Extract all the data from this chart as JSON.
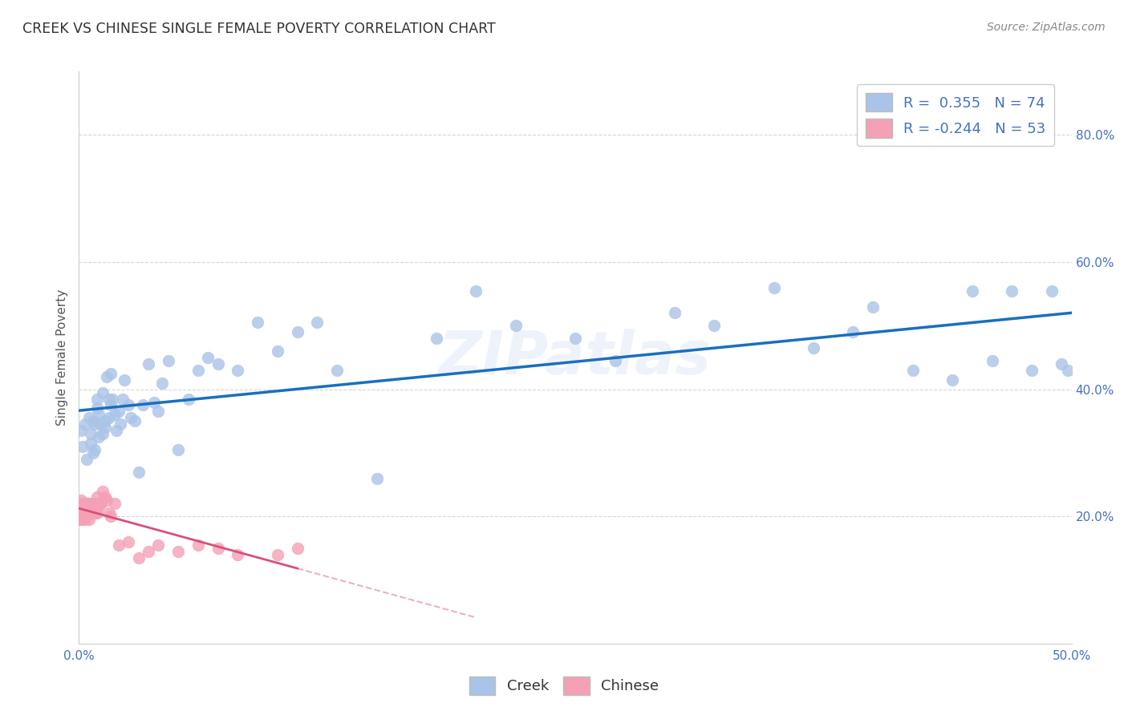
{
  "title": "CREEK VS CHINESE SINGLE FEMALE POVERTY CORRELATION CHART",
  "source": "Source: ZipAtlas.com",
  "ylabel": "Single Female Poverty",
  "xlim": [
    0.0,
    0.5
  ],
  "ylim": [
    0.0,
    0.9
  ],
  "creek_color": "#aac4e8",
  "creek_line_color": "#1a6fbf",
  "chinese_color": "#f4a0b5",
  "chinese_line_color": "#d94f7a",
  "watermark": "ZIPatlas",
  "legend_creek_R": "R =  0.355",
  "legend_creek_N": "N = 74",
  "legend_chinese_R": "R = -0.244",
  "legend_chinese_N": "N = 53",
  "creek_x": [
    0.001,
    0.002,
    0.003,
    0.004,
    0.005,
    0.006,
    0.006,
    0.007,
    0.007,
    0.008,
    0.008,
    0.009,
    0.009,
    0.01,
    0.01,
    0.011,
    0.012,
    0.012,
    0.013,
    0.013,
    0.014,
    0.015,
    0.015,
    0.016,
    0.016,
    0.017,
    0.018,
    0.019,
    0.02,
    0.021,
    0.022,
    0.023,
    0.025,
    0.026,
    0.028,
    0.03,
    0.032,
    0.035,
    0.038,
    0.04,
    0.042,
    0.045,
    0.05,
    0.055,
    0.06,
    0.065,
    0.07,
    0.08,
    0.09,
    0.1,
    0.11,
    0.12,
    0.13,
    0.15,
    0.18,
    0.2,
    0.22,
    0.25,
    0.27,
    0.3,
    0.32,
    0.35,
    0.37,
    0.39,
    0.4,
    0.42,
    0.44,
    0.45,
    0.46,
    0.47,
    0.48,
    0.49,
    0.495,
    0.498
  ],
  "creek_y": [
    0.335,
    0.31,
    0.345,
    0.29,
    0.355,
    0.33,
    0.315,
    0.35,
    0.3,
    0.345,
    0.305,
    0.37,
    0.385,
    0.325,
    0.36,
    0.345,
    0.395,
    0.33,
    0.35,
    0.34,
    0.42,
    0.385,
    0.355,
    0.375,
    0.425,
    0.385,
    0.36,
    0.335,
    0.365,
    0.345,
    0.385,
    0.415,
    0.375,
    0.355,
    0.35,
    0.27,
    0.375,
    0.44,
    0.38,
    0.365,
    0.41,
    0.445,
    0.305,
    0.385,
    0.43,
    0.45,
    0.44,
    0.43,
    0.505,
    0.46,
    0.49,
    0.505,
    0.43,
    0.26,
    0.48,
    0.555,
    0.5,
    0.48,
    0.445,
    0.52,
    0.5,
    0.56,
    0.465,
    0.49,
    0.53,
    0.43,
    0.415,
    0.555,
    0.445,
    0.555,
    0.43,
    0.555,
    0.44,
    0.43
  ],
  "chinese_x": [
    0.0,
    0.0,
    0.001,
    0.001,
    0.001,
    0.001,
    0.001,
    0.002,
    0.002,
    0.002,
    0.002,
    0.002,
    0.003,
    0.003,
    0.003,
    0.004,
    0.004,
    0.004,
    0.004,
    0.005,
    0.005,
    0.005,
    0.005,
    0.006,
    0.006,
    0.006,
    0.007,
    0.007,
    0.007,
    0.008,
    0.008,
    0.009,
    0.009,
    0.01,
    0.01,
    0.011,
    0.012,
    0.013,
    0.014,
    0.015,
    0.016,
    0.018,
    0.02,
    0.025,
    0.03,
    0.035,
    0.04,
    0.05,
    0.06,
    0.07,
    0.08,
    0.1,
    0.11
  ],
  "chinese_y": [
    0.205,
    0.195,
    0.215,
    0.195,
    0.21,
    0.225,
    0.2,
    0.22,
    0.205,
    0.195,
    0.215,
    0.2,
    0.21,
    0.195,
    0.215,
    0.205,
    0.22,
    0.215,
    0.2,
    0.22,
    0.205,
    0.21,
    0.195,
    0.205,
    0.215,
    0.22,
    0.21,
    0.215,
    0.22,
    0.22,
    0.205,
    0.205,
    0.23,
    0.215,
    0.22,
    0.22,
    0.24,
    0.23,
    0.225,
    0.205,
    0.2,
    0.22,
    0.155,
    0.16,
    0.135,
    0.145,
    0.155,
    0.145,
    0.155,
    0.15,
    0.14,
    0.14,
    0.15
  ]
}
